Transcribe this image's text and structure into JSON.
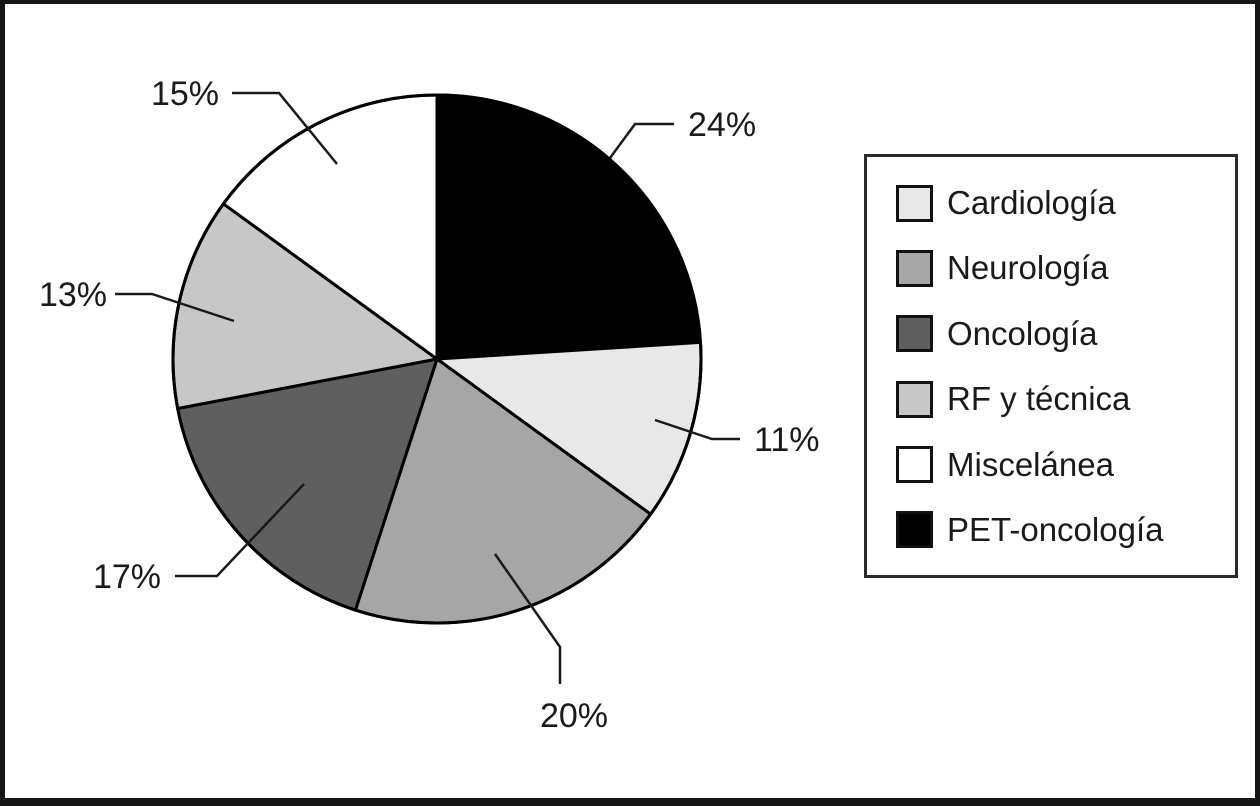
{
  "figure": {
    "background_color": "#ffffff",
    "frame_color": "#161616",
    "line_color": "#000000",
    "text_color": "#1a1a1a"
  },
  "chart_data": {
    "type": "pie",
    "title": "",
    "start_angle_deg": 0,
    "direction": "clockwise",
    "slices": [
      {
        "label": "PET-oncología",
        "value": 24,
        "display": "24%",
        "color": "#000000"
      },
      {
        "label": "Cardiología",
        "value": 11,
        "display": "11%",
        "color": "#e8e8e8"
      },
      {
        "label": "Neurología",
        "value": 20,
        "display": "20%",
        "color": "#a6a6a6"
      },
      {
        "label": "Oncología",
        "value": 17,
        "display": "17%",
        "color": "#5f5f5f"
      },
      {
        "label": "RF y técnica",
        "value": 13,
        "display": "13%",
        "color": "#c7c7c7"
      },
      {
        "label": "Miscelánea",
        "value": 15,
        "display": "15%",
        "color": "#ffffff"
      }
    ],
    "legend": {
      "position": "right",
      "items": [
        {
          "label": "Cardiología",
          "color": "#e8e8e8"
        },
        {
          "label": "Neurología",
          "color": "#a6a6a6"
        },
        {
          "label": "Oncología",
          "color": "#5f5f5f"
        },
        {
          "label": "RF y técnica",
          "color": "#c7c7c7"
        },
        {
          "label": "Miscelánea",
          "color": "#ffffff"
        },
        {
          "label": "PET-oncología",
          "color": "#000000"
        }
      ]
    }
  }
}
